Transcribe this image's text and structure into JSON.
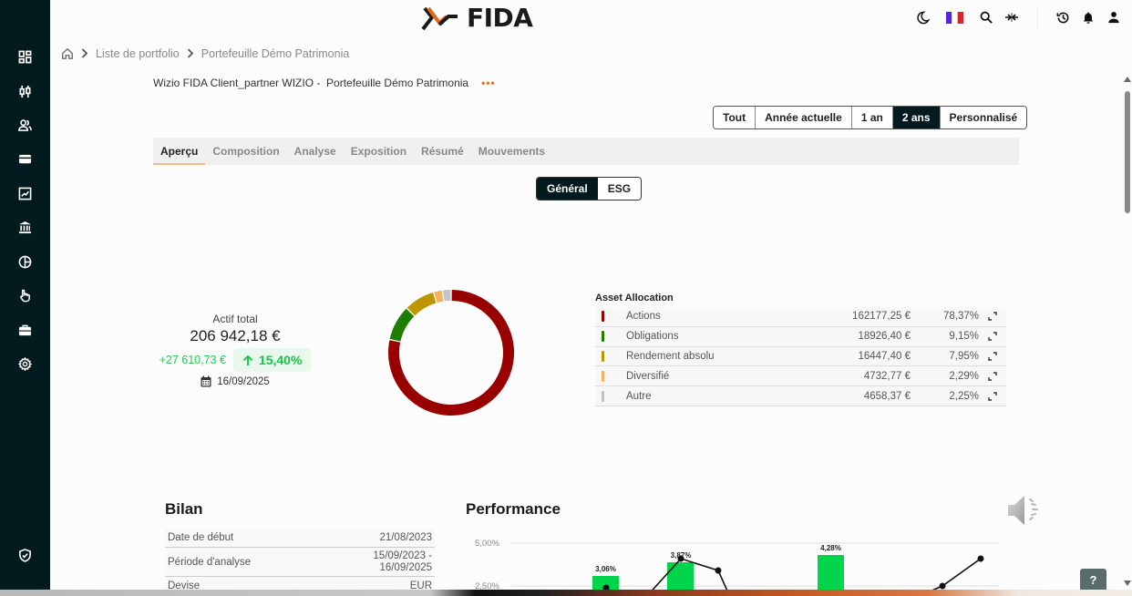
{
  "header": {
    "logo_text": "FIDA",
    "icons": [
      "moon-icon",
      "flag-fr-icon",
      "search-icon",
      "compress-icon",
      "history-icon",
      "bell-icon",
      "user-icon"
    ]
  },
  "sidebar": {
    "items": [
      {
        "name": "dashboard",
        "icon": "grid-icon"
      },
      {
        "name": "instruments",
        "icon": "sliders-icon"
      },
      {
        "name": "clients",
        "icon": "users-icon"
      },
      {
        "name": "accounts",
        "icon": "card-icon"
      },
      {
        "name": "charts",
        "icon": "chart-icon"
      },
      {
        "name": "institutions",
        "icon": "bank-icon"
      },
      {
        "name": "allocation",
        "icon": "pie-icon"
      },
      {
        "name": "orders",
        "icon": "hand-icon"
      },
      {
        "name": "portfolio",
        "icon": "briefcase-icon"
      },
      {
        "name": "settings",
        "icon": "gear-icon"
      }
    ],
    "bottom_icon": "shield-check-icon"
  },
  "breadcrumb": {
    "items": [
      "Liste de portfolio",
      "Portefeuille Démo Patrimonia"
    ]
  },
  "portfolio": {
    "title": "Wizio FIDA Client_partner WIZIO -  Portefeuille Démo Patrimonia",
    "more_label": "•••"
  },
  "periods": {
    "options": [
      "Tout",
      "Année actuelle",
      "1 an",
      "2 ans",
      "Personnalisé"
    ],
    "selected": "2 ans"
  },
  "tabs": {
    "items": [
      "Aperçu",
      "Composition",
      "Analyse",
      "Exposition",
      "Résumé",
      "Mouvements"
    ],
    "active": "Aperçu"
  },
  "view_toggle": {
    "options": [
      "Général",
      "ESG"
    ],
    "selected": "Général"
  },
  "actif": {
    "label": "Actif total",
    "value": "206 942,18 €",
    "gain_abs": "+27 610,73 €",
    "gain_pct": "15,40%",
    "date": "16/09/2025"
  },
  "allocation": {
    "title": "Asset Allocation",
    "rows": [
      {
        "name": "Actions",
        "value": "162177,25 €",
        "pct": "78,37%",
        "color": "#990000"
      },
      {
        "name": "Obligations",
        "value": "18926,40 €",
        "pct": "9,15%",
        "color": "#1e7d00"
      },
      {
        "name": "Rendement absolu",
        "value": "16447,40 €",
        "pct": "7,95%",
        "color": "#bf9600"
      },
      {
        "name": "Diversifié",
        "value": "4732,77 €",
        "pct": "2,29%",
        "color": "#f5b060"
      },
      {
        "name": "Autre",
        "value": "4658,37 €",
        "pct": "2,25%",
        "color": "#c4c4c4"
      }
    ]
  },
  "chart_data": [
    {
      "type": "pie",
      "title": "Asset Allocation",
      "categories": [
        "Actions",
        "Obligations",
        "Rendement absolu",
        "Diversifié",
        "Autre"
      ],
      "values": [
        78.37,
        9.15,
        7.95,
        2.29,
        2.25
      ],
      "colors": [
        "#990000",
        "#1e7d00",
        "#bf9600",
        "#f5b060",
        "#c4c4c4"
      ]
    },
    {
      "type": "bar",
      "title": "Performance",
      "ylabel": "",
      "y_ticks": [
        "5,00%",
        "2,50%"
      ],
      "bar_labels": [
        "3,06%",
        "3,87%",
        "4,28%"
      ],
      "bars": [
        3.06,
        3.87,
        4.28
      ],
      "line_points_visible": 6,
      "partial": true
    }
  ],
  "bilan": {
    "title": "Bilan",
    "rows": [
      {
        "label": "Date de début",
        "value": "21/08/2023"
      },
      {
        "label": "Période d'analyse",
        "value": "15/09/2023 - 16/09/2025"
      },
      {
        "label": "Devise",
        "value": "EUR"
      }
    ]
  },
  "performance": {
    "title": "Performance",
    "y_ticks": [
      "5,00%",
      "2,50%"
    ],
    "bar_labels": [
      "3,06%",
      "3,87%",
      "4,28%"
    ]
  },
  "help": {
    "label": "?"
  }
}
